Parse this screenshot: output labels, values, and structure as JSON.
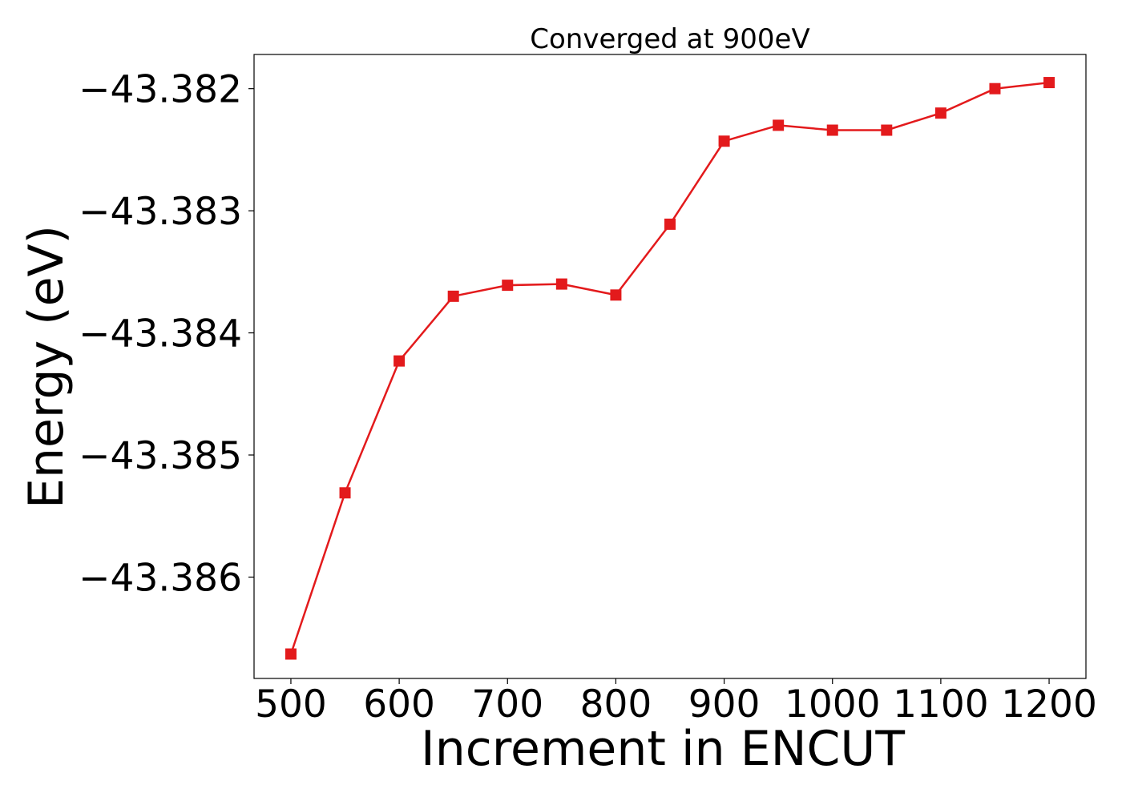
{
  "chart_data": {
    "type": "line",
    "title": "Converged at 900eV",
    "xlabel": "Increment in ENCUT",
    "ylabel": "Energy (eV)",
    "x": [
      500,
      550,
      600,
      650,
      700,
      750,
      800,
      850,
      900,
      950,
      1000,
      1050,
      1100,
      1150,
      1200
    ],
    "series": [
      {
        "values": [
          -43.38663,
          -43.38531,
          -43.38423,
          -43.3837,
          -43.38361,
          -43.3836,
          -43.38369,
          -43.38311,
          -43.38243,
          -43.3823,
          -43.38234,
          -43.38234,
          -43.3822,
          -43.382,
          -43.38195
        ],
        "color": "#e31a1c",
        "marker": "square"
      }
    ],
    "xticks": [
      500,
      600,
      700,
      800,
      900,
      1000,
      1100,
      1200
    ],
    "xtick_labels": [
      "500",
      "600",
      "700",
      "800",
      "900",
      "1000",
      "1100",
      "1200"
    ],
    "yticks": [
      -43.386,
      -43.385,
      -43.384,
      -43.383,
      -43.382
    ],
    "ytick_labels": [
      "−43.386",
      "−43.385",
      "−43.384",
      "−43.383",
      "−43.382"
    ],
    "xlim": [
      466,
      1234
    ],
    "ylim": [
      -43.38683,
      -43.38172
    ],
    "grid": false,
    "legend": "none"
  }
}
